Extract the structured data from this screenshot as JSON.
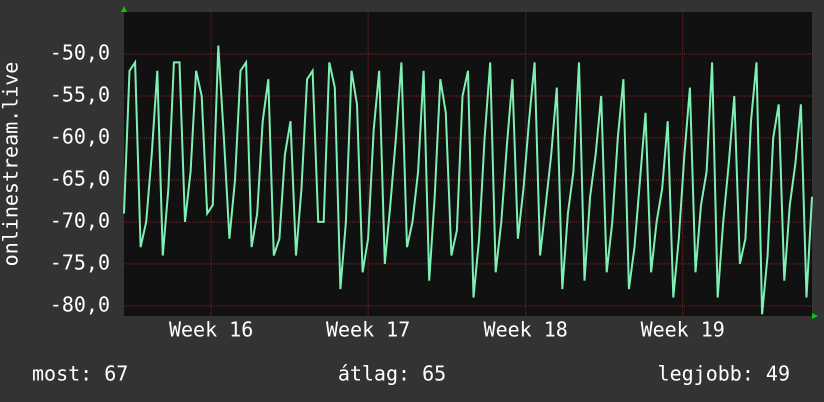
{
  "chart_data": {
    "type": "line",
    "y_label": "onlinestream.live",
    "series": [
      {
        "color": "#7ff0b4",
        "values": [
          -69,
          -52,
          -51,
          -73,
          -70,
          -62,
          -52,
          -74,
          -66,
          -51,
          -51,
          -70,
          -64,
          -52,
          -55,
          -69,
          -68,
          -49,
          -60,
          -72,
          -65,
          -52,
          -51,
          -73,
          -69,
          -58,
          -53,
          -74,
          -72,
          -62,
          -58,
          -74,
          -66,
          -53,
          -52,
          -70,
          -70,
          -51,
          -54,
          -78,
          -70,
          -52,
          -56,
          -76,
          -72,
          -59,
          -52,
          -75,
          -68,
          -60,
          -51,
          -73,
          -70,
          -64,
          -52,
          -77,
          -67,
          -53,
          -57,
          -74,
          -71,
          -55,
          -52,
          -79,
          -72,
          -60,
          -51,
          -76,
          -70,
          -61,
          -53,
          -72,
          -66,
          -58,
          -51,
          -74,
          -68,
          -62,
          -54,
          -78,
          -69,
          -64,
          -51,
          -77,
          -67,
          -62,
          -55,
          -76,
          -70,
          -60,
          -53,
          -78,
          -73,
          -65,
          -57,
          -76,
          -70,
          -66,
          -58,
          -79,
          -72,
          -62,
          -54,
          -76,
          -68,
          -64,
          -51,
          -79,
          -70,
          -63,
          -55,
          -75,
          -72,
          -58,
          -51,
          -81,
          -74,
          -60,
          -56,
          -77,
          -68,
          -63,
          -56,
          -79,
          -67
        ]
      }
    ],
    "xlim": [
      0,
      124
    ],
    "xticks": [
      {
        "value": 15.7,
        "label": "Week 16"
      },
      {
        "value": 44,
        "label": "Week 17"
      },
      {
        "value": 72.4,
        "label": "Week 18"
      },
      {
        "value": 100.7,
        "label": "Week 19"
      }
    ],
    "ylim": [
      -81.2,
      -45
    ],
    "yticks": [
      {
        "value": -50,
        "label": "-50,0"
      },
      {
        "value": -55,
        "label": "-55,0"
      },
      {
        "value": -60,
        "label": "-60,0"
      },
      {
        "value": -65,
        "label": "-65,0"
      },
      {
        "value": -70,
        "label": "-70,0"
      },
      {
        "value": -75,
        "label": "-75,0"
      },
      {
        "value": -80,
        "label": "-80,0"
      }
    ],
    "grid": true,
    "stats": [
      "most: 67",
      "átlag: 65",
      "legjobb: 49"
    ]
  }
}
